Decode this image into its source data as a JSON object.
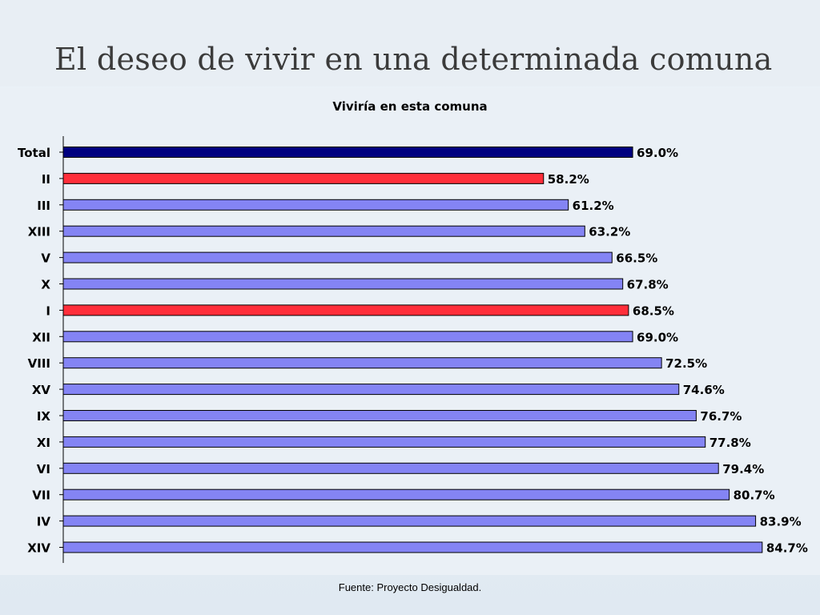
{
  "slide": {
    "title": "El deseo de vivir en una determinada comuna",
    "source": "Fuente: Proyecto Desigualdad."
  },
  "colors": {
    "total": "#00007f",
    "highlight": "#ff2e3a",
    "default": "#8484f4",
    "outline": "#000000"
  },
  "chart_data": {
    "type": "bar",
    "orientation": "horizontal",
    "title": "Viviría en esta comuna",
    "categories": [
      "Total",
      "II",
      "III",
      "XIII",
      "V",
      "X",
      "I",
      "XII",
      "VIII",
      "XV",
      "IX",
      "XI",
      "VI",
      "VII",
      "IV",
      "XIV"
    ],
    "values": [
      69.0,
      58.2,
      61.2,
      63.2,
      66.5,
      67.8,
      68.5,
      69.0,
      72.5,
      74.6,
      76.7,
      77.8,
      79.4,
      80.7,
      83.9,
      84.7
    ],
    "value_labels": [
      "69.0%",
      "58.2%",
      "61.2%",
      "63.2%",
      "66.5%",
      "67.8%",
      "68.5%",
      "69.0%",
      "72.5%",
      "74.6%",
      "76.7%",
      "77.8%",
      "79.4%",
      "80.7%",
      "83.9%",
      "84.7%"
    ],
    "bar_style": [
      "total",
      "highlight",
      "default",
      "default",
      "default",
      "default",
      "highlight",
      "default",
      "default",
      "default",
      "default",
      "default",
      "default",
      "default",
      "default",
      "default"
    ],
    "xlim": [
      0,
      100
    ],
    "grid": false,
    "legend": "none"
  }
}
